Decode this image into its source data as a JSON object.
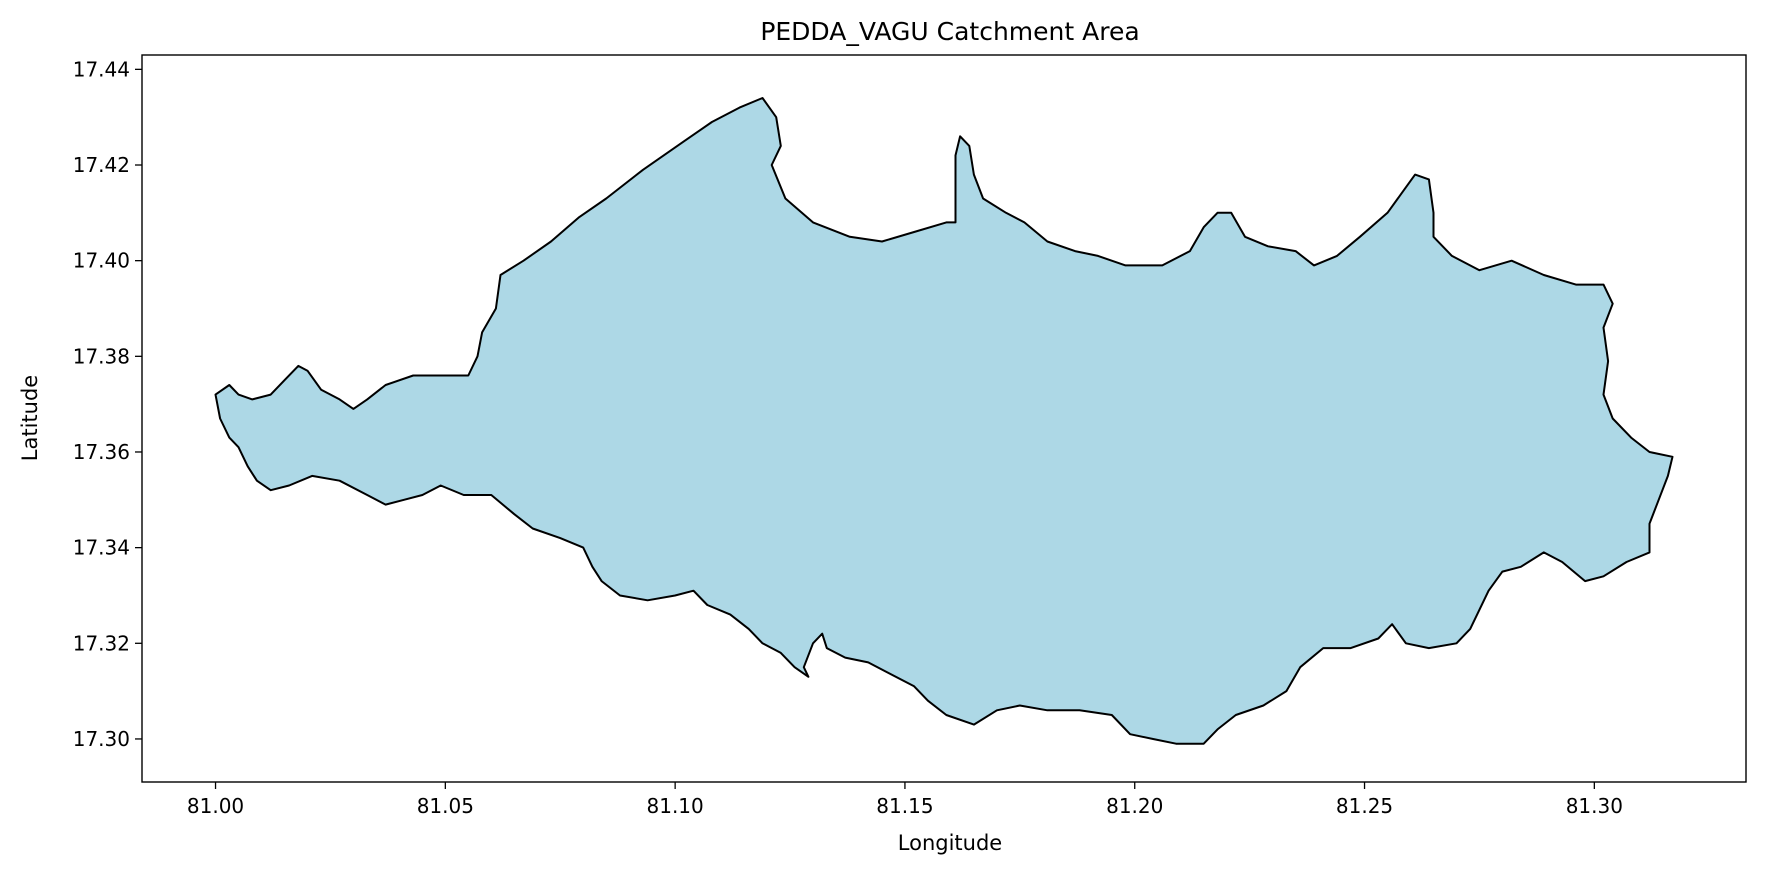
{
  "chart_data": {
    "type": "area",
    "title": "PEDDA_VAGU Catchment Area",
    "xlabel": "Longitude",
    "ylabel": "Latitude",
    "xlim": [
      80.984,
      81.333
    ],
    "ylim": [
      17.291,
      17.443
    ],
    "x_ticks": [
      "81.00",
      "81.05",
      "81.10",
      "81.15",
      "81.20",
      "81.25",
      "81.30"
    ],
    "y_ticks": [
      "17.30",
      "17.32",
      "17.34",
      "17.36",
      "17.38",
      "17.40",
      "17.42",
      "17.44"
    ],
    "grid": false,
    "fill_color": "#add8e6",
    "edge_color": "#000000",
    "boundary": [
      [
        81.0,
        17.372
      ],
      [
        81.003,
        17.374
      ],
      [
        81.005,
        17.372
      ],
      [
        81.008,
        17.371
      ],
      [
        81.012,
        17.372
      ],
      [
        81.015,
        17.375
      ],
      [
        81.018,
        17.378
      ],
      [
        81.02,
        17.377
      ],
      [
        81.023,
        17.373
      ],
      [
        81.027,
        17.371
      ],
      [
        81.03,
        17.369
      ],
      [
        81.033,
        17.371
      ],
      [
        81.037,
        17.374
      ],
      [
        81.043,
        17.376
      ],
      [
        81.049,
        17.376
      ],
      [
        81.055,
        17.376
      ],
      [
        81.057,
        17.38
      ],
      [
        81.058,
        17.385
      ],
      [
        81.061,
        17.39
      ],
      [
        81.062,
        17.397
      ],
      [
        81.067,
        17.4
      ],
      [
        81.073,
        17.404
      ],
      [
        81.079,
        17.409
      ],
      [
        81.085,
        17.413
      ],
      [
        81.093,
        17.419
      ],
      [
        81.102,
        17.425
      ],
      [
        81.108,
        17.429
      ],
      [
        81.114,
        17.432
      ],
      [
        81.119,
        17.434
      ],
      [
        81.122,
        17.43
      ],
      [
        81.123,
        17.424
      ],
      [
        81.121,
        17.42
      ],
      [
        81.124,
        17.413
      ],
      [
        81.13,
        17.408
      ],
      [
        81.138,
        17.405
      ],
      [
        81.145,
        17.404
      ],
      [
        81.152,
        17.406
      ],
      [
        81.159,
        17.408
      ],
      [
        81.161,
        17.408
      ],
      [
        81.161,
        17.422
      ],
      [
        81.162,
        17.426
      ],
      [
        81.164,
        17.424
      ],
      [
        81.165,
        17.418
      ],
      [
        81.167,
        17.413
      ],
      [
        81.172,
        17.41
      ],
      [
        81.176,
        17.408
      ],
      [
        81.181,
        17.404
      ],
      [
        81.187,
        17.402
      ],
      [
        81.192,
        17.401
      ],
      [
        81.198,
        17.399
      ],
      [
        81.206,
        17.399
      ],
      [
        81.212,
        17.402
      ],
      [
        81.215,
        17.407
      ],
      [
        81.218,
        17.41
      ],
      [
        81.221,
        17.41
      ],
      [
        81.224,
        17.405
      ],
      [
        81.229,
        17.403
      ],
      [
        81.235,
        17.402
      ],
      [
        81.239,
        17.399
      ],
      [
        81.244,
        17.401
      ],
      [
        81.249,
        17.405
      ],
      [
        81.255,
        17.41
      ],
      [
        81.258,
        17.414
      ],
      [
        81.261,
        17.418
      ],
      [
        81.264,
        17.417
      ],
      [
        81.265,
        17.41
      ],
      [
        81.265,
        17.405
      ],
      [
        81.269,
        17.401
      ],
      [
        81.275,
        17.398
      ],
      [
        81.282,
        17.4
      ],
      [
        81.289,
        17.397
      ],
      [
        81.296,
        17.395
      ],
      [
        81.302,
        17.395
      ],
      [
        81.304,
        17.391
      ],
      [
        81.302,
        17.386
      ],
      [
        81.303,
        17.379
      ],
      [
        81.302,
        17.372
      ],
      [
        81.304,
        17.367
      ],
      [
        81.308,
        17.363
      ],
      [
        81.312,
        17.36
      ],
      [
        81.317,
        17.359
      ],
      [
        81.316,
        17.355
      ],
      [
        81.314,
        17.35
      ],
      [
        81.312,
        17.345
      ],
      [
        81.312,
        17.339
      ],
      [
        81.307,
        17.337
      ],
      [
        81.302,
        17.334
      ],
      [
        81.298,
        17.333
      ],
      [
        81.293,
        17.337
      ],
      [
        81.289,
        17.339
      ],
      [
        81.284,
        17.336
      ],
      [
        81.28,
        17.335
      ],
      [
        81.277,
        17.331
      ],
      [
        81.275,
        17.327
      ],
      [
        81.273,
        17.323
      ],
      [
        81.27,
        17.32
      ],
      [
        81.264,
        17.319
      ],
      [
        81.259,
        17.32
      ],
      [
        81.256,
        17.324
      ],
      [
        81.253,
        17.321
      ],
      [
        81.247,
        17.319
      ],
      [
        81.241,
        17.319
      ],
      [
        81.236,
        17.315
      ],
      [
        81.233,
        17.31
      ],
      [
        81.228,
        17.307
      ],
      [
        81.222,
        17.305
      ],
      [
        81.218,
        17.302
      ],
      [
        81.215,
        17.299
      ],
      [
        81.209,
        17.299
      ],
      [
        81.204,
        17.3
      ],
      [
        81.199,
        17.301
      ],
      [
        81.195,
        17.305
      ],
      [
        81.188,
        17.306
      ],
      [
        81.181,
        17.306
      ],
      [
        81.175,
        17.307
      ],
      [
        81.17,
        17.306
      ],
      [
        81.165,
        17.303
      ],
      [
        81.159,
        17.305
      ],
      [
        81.155,
        17.308
      ],
      [
        81.152,
        17.311
      ],
      [
        81.146,
        17.314
      ],
      [
        81.142,
        17.316
      ],
      [
        81.137,
        17.317
      ],
      [
        81.133,
        17.319
      ],
      [
        81.132,
        17.322
      ],
      [
        81.13,
        17.32
      ],
      [
        81.128,
        17.315
      ],
      [
        81.129,
        17.313
      ],
      [
        81.126,
        17.315
      ],
      [
        81.123,
        17.318
      ],
      [
        81.119,
        17.32
      ],
      [
        81.116,
        17.323
      ],
      [
        81.112,
        17.326
      ],
      [
        81.107,
        17.328
      ],
      [
        81.104,
        17.331
      ],
      [
        81.1,
        17.33
      ],
      [
        81.094,
        17.329
      ],
      [
        81.088,
        17.33
      ],
      [
        81.084,
        17.333
      ],
      [
        81.082,
        17.336
      ],
      [
        81.08,
        17.34
      ],
      [
        81.075,
        17.342
      ],
      [
        81.069,
        17.344
      ],
      [
        81.065,
        17.347
      ],
      [
        81.06,
        17.351
      ],
      [
        81.054,
        17.351
      ],
      [
        81.049,
        17.353
      ],
      [
        81.045,
        17.351
      ],
      [
        81.041,
        17.35
      ],
      [
        81.037,
        17.349
      ],
      [
        81.033,
        17.351
      ],
      [
        81.027,
        17.354
      ],
      [
        81.021,
        17.355
      ],
      [
        81.016,
        17.353
      ],
      [
        81.012,
        17.352
      ],
      [
        81.009,
        17.354
      ],
      [
        81.007,
        17.357
      ],
      [
        81.005,
        17.361
      ],
      [
        81.003,
        17.363
      ],
      [
        81.001,
        17.367
      ]
    ]
  }
}
